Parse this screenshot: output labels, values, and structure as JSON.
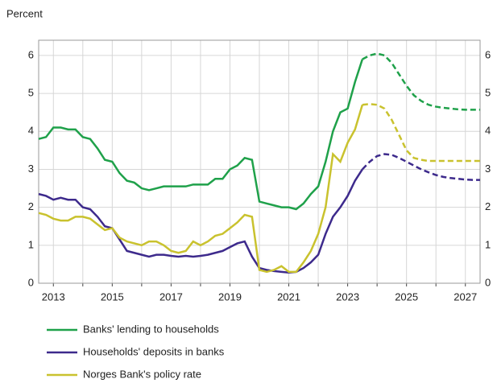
{
  "chart_data": {
    "type": "line",
    "y_label": "Percent",
    "x": [
      2012.5,
      2012.75,
      2013,
      2013.25,
      2013.5,
      2013.75,
      2014,
      2014.25,
      2014.5,
      2014.75,
      2015,
      2015.25,
      2015.5,
      2015.75,
      2016,
      2016.25,
      2016.5,
      2016.75,
      2017,
      2017.25,
      2017.5,
      2017.75,
      2018,
      2018.25,
      2018.5,
      2018.75,
      2019,
      2019.25,
      2019.5,
      2019.75,
      2020,
      2020.25,
      2020.5,
      2020.75,
      2021,
      2021.25,
      2021.5,
      2021.75,
      2022,
      2022.25,
      2022.5,
      2022.75,
      2023,
      2023.25,
      2023.5,
      2023.75,
      2024,
      2024.25,
      2024.5,
      2024.75,
      2025,
      2025.25,
      2025.5,
      2025.75,
      2026,
      2026.25,
      2026.5,
      2026.75,
      2027,
      2027.25,
      2027.5
    ],
    "series": [
      {
        "name": "Banks' lending to households",
        "color": "#1fa14a",
        "values": [
          3.8,
          3.85,
          4.1,
          4.1,
          4.05,
          4.05,
          3.85,
          3.8,
          3.55,
          3.25,
          3.2,
          2.9,
          2.7,
          2.65,
          2.5,
          2.45,
          2.5,
          2.55,
          2.55,
          2.55,
          2.55,
          2.6,
          2.6,
          2.6,
          2.75,
          2.75,
          3.0,
          3.1,
          3.3,
          3.25,
          2.15,
          2.1,
          2.05,
          2.0,
          2.0,
          1.95,
          2.1,
          2.35,
          2.55,
          3.2,
          4.0,
          4.5,
          4.6,
          5.3,
          5.9,
          null,
          null,
          null,
          null,
          null,
          null,
          null,
          null,
          null,
          null,
          null,
          null,
          null,
          null,
          null,
          null
        ],
        "projection": [
          null,
          null,
          null,
          null,
          null,
          null,
          null,
          null,
          null,
          null,
          null,
          null,
          null,
          null,
          null,
          null,
          null,
          null,
          null,
          null,
          null,
          null,
          null,
          null,
          null,
          null,
          null,
          null,
          null,
          null,
          null,
          null,
          null,
          null,
          null,
          null,
          null,
          null,
          null,
          null,
          null,
          null,
          null,
          null,
          null,
          6.0,
          6.05,
          6.0,
          5.8,
          5.5,
          5.2,
          4.95,
          4.8,
          4.7,
          4.65,
          4.62,
          4.6,
          4.58,
          4.57,
          4.57,
          4.57
        ]
      },
      {
        "name": "Households' deposits in banks",
        "color": "#3d2a8c",
        "values": [
          2.35,
          2.3,
          2.2,
          2.25,
          2.2,
          2.2,
          2.0,
          1.95,
          1.75,
          1.5,
          1.45,
          1.15,
          0.85,
          0.8,
          0.75,
          0.7,
          0.75,
          0.75,
          0.72,
          0.7,
          0.72,
          0.7,
          0.72,
          0.75,
          0.8,
          0.85,
          0.95,
          1.05,
          1.1,
          0.7,
          0.4,
          0.35,
          0.32,
          0.3,
          0.28,
          0.3,
          0.4,
          0.55,
          0.75,
          1.3,
          1.75,
          2.0,
          2.3,
          2.7,
          3.0,
          null,
          null,
          null,
          null,
          null,
          null,
          null,
          null,
          null,
          null,
          null,
          null,
          null,
          null,
          null,
          null
        ],
        "projection": [
          null,
          null,
          null,
          null,
          null,
          null,
          null,
          null,
          null,
          null,
          null,
          null,
          null,
          null,
          null,
          null,
          null,
          null,
          null,
          null,
          null,
          null,
          null,
          null,
          null,
          null,
          null,
          null,
          null,
          null,
          null,
          null,
          null,
          null,
          null,
          null,
          null,
          null,
          null,
          null,
          null,
          null,
          null,
          null,
          null,
          3.2,
          3.35,
          3.4,
          3.38,
          3.3,
          3.2,
          3.1,
          3.0,
          2.92,
          2.85,
          2.8,
          2.77,
          2.75,
          2.73,
          2.72,
          2.72
        ]
      },
      {
        "name": "Norges Bank's policy rate",
        "color": "#c9c22e",
        "values": [
          1.85,
          1.8,
          1.7,
          1.65,
          1.65,
          1.75,
          1.75,
          1.7,
          1.55,
          1.4,
          1.45,
          1.2,
          1.1,
          1.05,
          1.0,
          1.1,
          1.1,
          1.0,
          0.85,
          0.8,
          0.85,
          1.1,
          1.0,
          1.1,
          1.25,
          1.3,
          1.45,
          1.6,
          1.8,
          1.75,
          0.35,
          0.3,
          0.35,
          0.45,
          0.3,
          0.3,
          0.55,
          0.85,
          1.3,
          2.0,
          3.4,
          3.2,
          3.7,
          4.05,
          4.7,
          null,
          null,
          null,
          null,
          null,
          null,
          null,
          null,
          null,
          null,
          null,
          null,
          null,
          null,
          null,
          null
        ],
        "projection": [
          null,
          null,
          null,
          null,
          null,
          null,
          null,
          null,
          null,
          null,
          null,
          null,
          null,
          null,
          null,
          null,
          null,
          null,
          null,
          null,
          null,
          null,
          null,
          null,
          null,
          null,
          null,
          null,
          null,
          null,
          null,
          null,
          null,
          null,
          null,
          null,
          null,
          null,
          null,
          null,
          null,
          null,
          null,
          null,
          null,
          4.72,
          4.7,
          4.6,
          4.3,
          3.9,
          3.5,
          3.3,
          3.25,
          3.22,
          3.22,
          3.22,
          3.22,
          3.22,
          3.22,
          3.22,
          3.22
        ]
      }
    ],
    "xlim": [
      2012.5,
      2027.5
    ],
    "xticks": [
      2013,
      2015,
      2017,
      2019,
      2021,
      2023,
      2025,
      2027
    ],
    "minor_xticks": [
      2014,
      2016,
      2018,
      2020,
      2022,
      2024,
      2026
    ],
    "ylim": [
      0,
      6.4
    ],
    "yticks": [
      0,
      1,
      2,
      3,
      4,
      5,
      6
    ],
    "y2ticks": [
      0,
      1,
      2,
      3,
      4,
      5,
      6
    ],
    "grid": true
  }
}
